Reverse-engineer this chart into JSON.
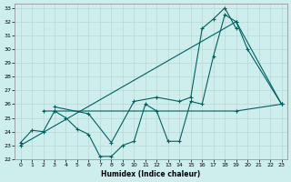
{
  "xlabel": "Humidex (Indice chaleur)",
  "bg_color": "#ceeeed",
  "line_color": "#006060",
  "grid_color": "#b8d8d6",
  "ylim": [
    22,
    33
  ],
  "xlim": [
    -0.5,
    23.5
  ],
  "yticks": [
    22,
    23,
    24,
    25,
    26,
    27,
    28,
    29,
    30,
    31,
    32,
    33
  ],
  "xticks": [
    0,
    1,
    2,
    3,
    4,
    5,
    6,
    7,
    8,
    9,
    10,
    11,
    12,
    13,
    14,
    15,
    16,
    17,
    18,
    19,
    20,
    21,
    22,
    23
  ],
  "series": [
    {
      "x": [
        0,
        1,
        2,
        3,
        4,
        5,
        6,
        7,
        8,
        9,
        10,
        11,
        12,
        13,
        14,
        15,
        16,
        17,
        18,
        19,
        20,
        23
      ],
      "y": [
        23.2,
        24.1,
        24.0,
        25.5,
        25.0,
        24.2,
        23.8,
        22.2,
        22.2,
        23.0,
        23.3,
        26.0,
        25.5,
        23.3,
        23.3,
        26.2,
        26.0,
        29.5,
        32.5,
        32.0,
        30.0,
        26.0
      ]
    },
    {
      "x": [
        3,
        6,
        8,
        10,
        12,
        14,
        15,
        16,
        17,
        18,
        19
      ],
      "y": [
        25.8,
        25.3,
        23.2,
        26.2,
        26.5,
        26.2,
        26.5,
        31.5,
        32.2,
        33.0,
        31.5
      ]
    },
    {
      "x": [
        0,
        19,
        23
      ],
      "y": [
        23.0,
        32.0,
        26.0
      ]
    },
    {
      "x": [
        2,
        3,
        19,
        23
      ],
      "y": [
        25.5,
        25.5,
        25.5,
        26.0
      ]
    }
  ]
}
